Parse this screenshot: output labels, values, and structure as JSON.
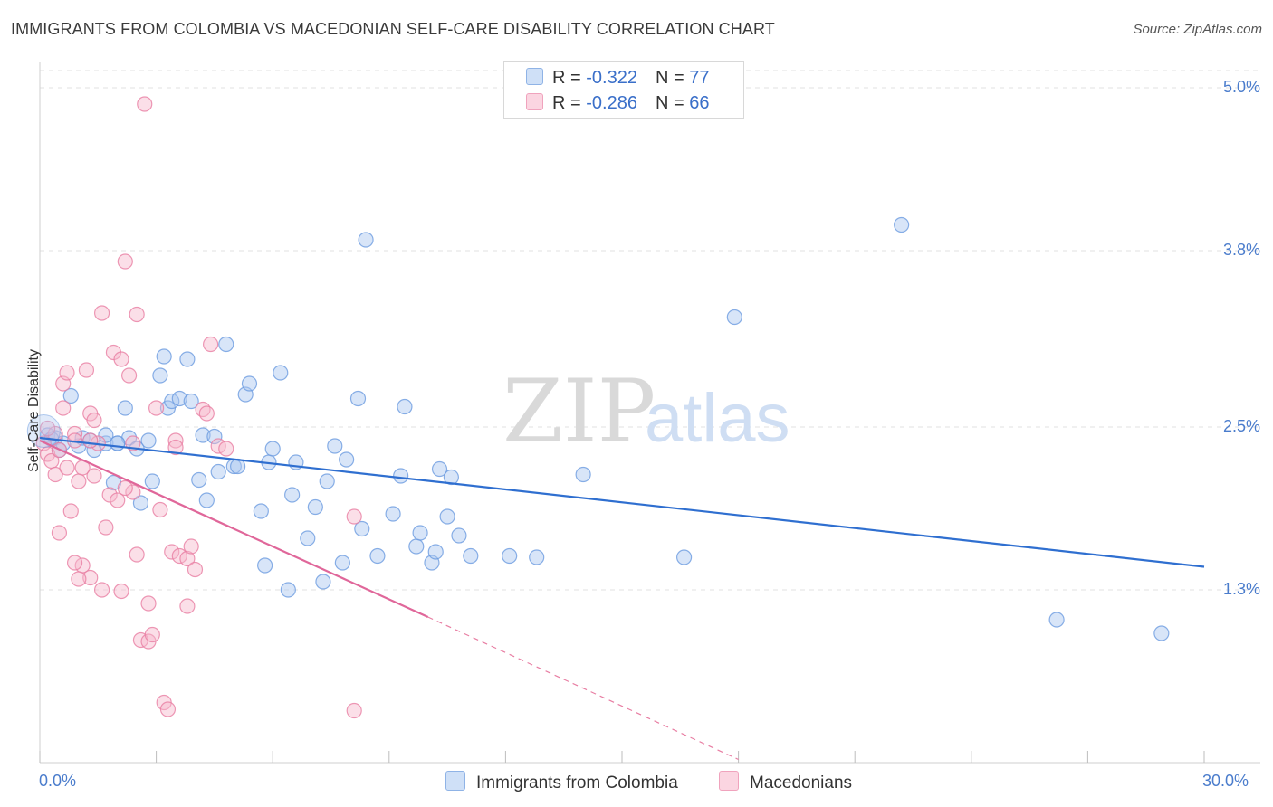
{
  "header": {
    "title": "IMMIGRANTS FROM COLOMBIA VS MACEDONIAN SELF-CARE DISABILITY CORRELATION CHART",
    "source": "Source: ZipAtlas.com"
  },
  "watermark": {
    "zip": "ZIP",
    "atlas": "atlas"
  },
  "legend_top": [
    {
      "r_label": "R = ",
      "r_value": "-0.322",
      "n_label": "N = ",
      "n_value": "77",
      "color": "#a9c6f0"
    },
    {
      "r_label": "R = ",
      "r_value": "-0.286",
      "n_label": "N = ",
      "n_value": "66",
      "color": "#f6b8cc"
    }
  ],
  "chart_data": {
    "type": "scatter",
    "xlabel": "",
    "ylabel": "Self-Care Disability",
    "xlim": [
      0,
      30
    ],
    "ylim": [
      0,
      5.3
    ],
    "x_tick_labels": [
      "0.0%",
      "30.0%"
    ],
    "y_ticks": [
      {
        "value": 5.0,
        "label": "5.0%"
      },
      {
        "value": 3.8,
        "label": "3.8%"
      },
      {
        "value": 2.5,
        "label": "2.5%"
      },
      {
        "value": 1.3,
        "label": "1.3%"
      }
    ],
    "grid": "horizontal dashed",
    "series": [
      {
        "name": "Immigrants from Colombia",
        "color": "#6c9be0",
        "fill": "#a9c6f0",
        "trend": {
          "x": [
            0,
            30
          ],
          "y": [
            2.42,
            1.47
          ]
        },
        "points": [
          [
            0.2,
            2.44
          ],
          [
            0.4,
            2.42
          ],
          [
            0.5,
            2.33
          ],
          [
            0.6,
            2.38
          ],
          [
            0.8,
            2.73
          ],
          [
            1.0,
            2.36
          ],
          [
            1.1,
            2.42
          ],
          [
            1.4,
            2.33
          ],
          [
            1.7,
            2.38
          ],
          [
            1.7,
            2.44
          ],
          [
            1.9,
            2.09
          ],
          [
            2.0,
            2.38
          ],
          [
            2.2,
            2.64
          ],
          [
            2.3,
            2.42
          ],
          [
            2.5,
            2.34
          ],
          [
            2.6,
            1.94
          ],
          [
            2.8,
            2.4
          ],
          [
            2.9,
            2.1
          ],
          [
            3.1,
            2.88
          ],
          [
            3.2,
            3.02
          ],
          [
            3.3,
            2.64
          ],
          [
            3.4,
            2.69
          ],
          [
            3.6,
            2.71
          ],
          [
            3.8,
            3.0
          ],
          [
            3.9,
            2.69
          ],
          [
            4.1,
            2.11
          ],
          [
            4.2,
            2.44
          ],
          [
            4.3,
            1.96
          ],
          [
            4.5,
            2.43
          ],
          [
            4.6,
            2.17
          ],
          [
            4.8,
            3.11
          ],
          [
            5.0,
            2.21
          ],
          [
            5.1,
            2.21
          ],
          [
            5.3,
            2.74
          ],
          [
            5.4,
            2.82
          ],
          [
            5.7,
            1.88
          ],
          [
            5.8,
            1.48
          ],
          [
            5.9,
            2.24
          ],
          [
            6.0,
            2.34
          ],
          [
            6.2,
            2.9
          ],
          [
            6.4,
            1.3
          ],
          [
            6.5,
            2.0
          ],
          [
            6.6,
            2.24
          ],
          [
            6.9,
            1.68
          ],
          [
            7.1,
            1.91
          ],
          [
            7.3,
            1.36
          ],
          [
            7.4,
            2.1
          ],
          [
            7.6,
            2.36
          ],
          [
            7.8,
            1.5
          ],
          [
            7.9,
            2.26
          ],
          [
            8.2,
            2.71
          ],
          [
            8.3,
            1.75
          ],
          [
            8.4,
            3.88
          ],
          [
            8.7,
            1.55
          ],
          [
            9.1,
            1.86
          ],
          [
            9.3,
            2.14
          ],
          [
            9.4,
            2.65
          ],
          [
            9.7,
            1.62
          ],
          [
            9.8,
            1.72
          ],
          [
            10.1,
            1.5
          ],
          [
            10.2,
            1.58
          ],
          [
            10.3,
            2.19
          ],
          [
            10.5,
            1.84
          ],
          [
            10.6,
            2.13
          ],
          [
            10.8,
            1.7
          ],
          [
            11.1,
            1.55
          ],
          [
            12.1,
            1.55
          ],
          [
            12.8,
            1.54
          ],
          [
            14.0,
            2.15
          ],
          [
            16.6,
            1.54
          ],
          [
            17.9,
            3.31
          ],
          [
            22.2,
            3.99
          ],
          [
            26.2,
            1.08
          ],
          [
            28.9,
            0.98
          ],
          [
            0.3,
            2.41
          ],
          [
            1.3,
            2.4
          ],
          [
            2.0,
            2.38
          ]
        ]
      },
      {
        "name": "Macedonians",
        "color": "#e87ea3",
        "fill": "#f6b8cc",
        "trend": {
          "x": [
            0,
            10
          ],
          "y": [
            2.4,
            1.1
          ]
        },
        "trend_dashed": {
          "x": [
            10,
            18
          ],
          "y": [
            1.1,
            0.05
          ]
        },
        "points": [
          [
            0.1,
            2.38
          ],
          [
            0.2,
            2.3
          ],
          [
            0.3,
            2.25
          ],
          [
            0.4,
            2.15
          ],
          [
            0.5,
            2.33
          ],
          [
            0.6,
            2.64
          ],
          [
            0.6,
            2.82
          ],
          [
            0.7,
            2.9
          ],
          [
            0.8,
            1.88
          ],
          [
            0.9,
            2.45
          ],
          [
            0.9,
            2.4
          ],
          [
            1.0,
            2.1
          ],
          [
            1.1,
            1.48
          ],
          [
            1.2,
            2.92
          ],
          [
            1.3,
            2.6
          ],
          [
            1.3,
            1.39
          ],
          [
            1.4,
            2.14
          ],
          [
            1.4,
            2.55
          ],
          [
            1.5,
            2.38
          ],
          [
            1.6,
            3.34
          ],
          [
            1.7,
            1.76
          ],
          [
            1.8,
            2.0
          ],
          [
            1.9,
            3.05
          ],
          [
            2.0,
            1.96
          ],
          [
            2.1,
            1.29
          ],
          [
            2.1,
            3.0
          ],
          [
            2.2,
            3.72
          ],
          [
            2.3,
            2.88
          ],
          [
            2.4,
            2.02
          ],
          [
            2.4,
            2.38
          ],
          [
            2.5,
            1.56
          ],
          [
            2.6,
            0.93
          ],
          [
            2.7,
            4.88
          ],
          [
            2.8,
            0.92
          ],
          [
            2.9,
            0.97
          ],
          [
            3.0,
            2.64
          ],
          [
            3.1,
            1.89
          ],
          [
            3.2,
            0.47
          ],
          [
            3.3,
            0.42
          ],
          [
            3.4,
            1.58
          ],
          [
            3.5,
            2.4
          ],
          [
            3.6,
            1.55
          ],
          [
            3.8,
            1.53
          ],
          [
            3.9,
            1.62
          ],
          [
            4.0,
            1.45
          ],
          [
            4.2,
            2.63
          ],
          [
            4.3,
            2.6
          ],
          [
            4.4,
            3.11
          ],
          [
            4.6,
            2.36
          ],
          [
            4.8,
            2.34
          ],
          [
            1.0,
            1.38
          ],
          [
            0.5,
            1.72
          ],
          [
            0.7,
            2.2
          ],
          [
            1.3,
            2.4
          ],
          [
            2.2,
            2.05
          ],
          [
            3.5,
            2.35
          ],
          [
            0.4,
            2.45
          ],
          [
            0.9,
            1.5
          ],
          [
            1.6,
            1.3
          ],
          [
            2.8,
            1.2
          ],
          [
            3.8,
            1.18
          ],
          [
            8.1,
            0.41
          ],
          [
            8.1,
            1.84
          ],
          [
            2.5,
            3.33
          ],
          [
            0.2,
            2.49
          ],
          [
            1.1,
            2.2
          ]
        ]
      }
    ]
  },
  "bottom_legend": [
    {
      "label": "Immigrants from Colombia",
      "color": "#a9c6f0"
    },
    {
      "label": "Macedonians",
      "color": "#f6b8cc"
    }
  ]
}
